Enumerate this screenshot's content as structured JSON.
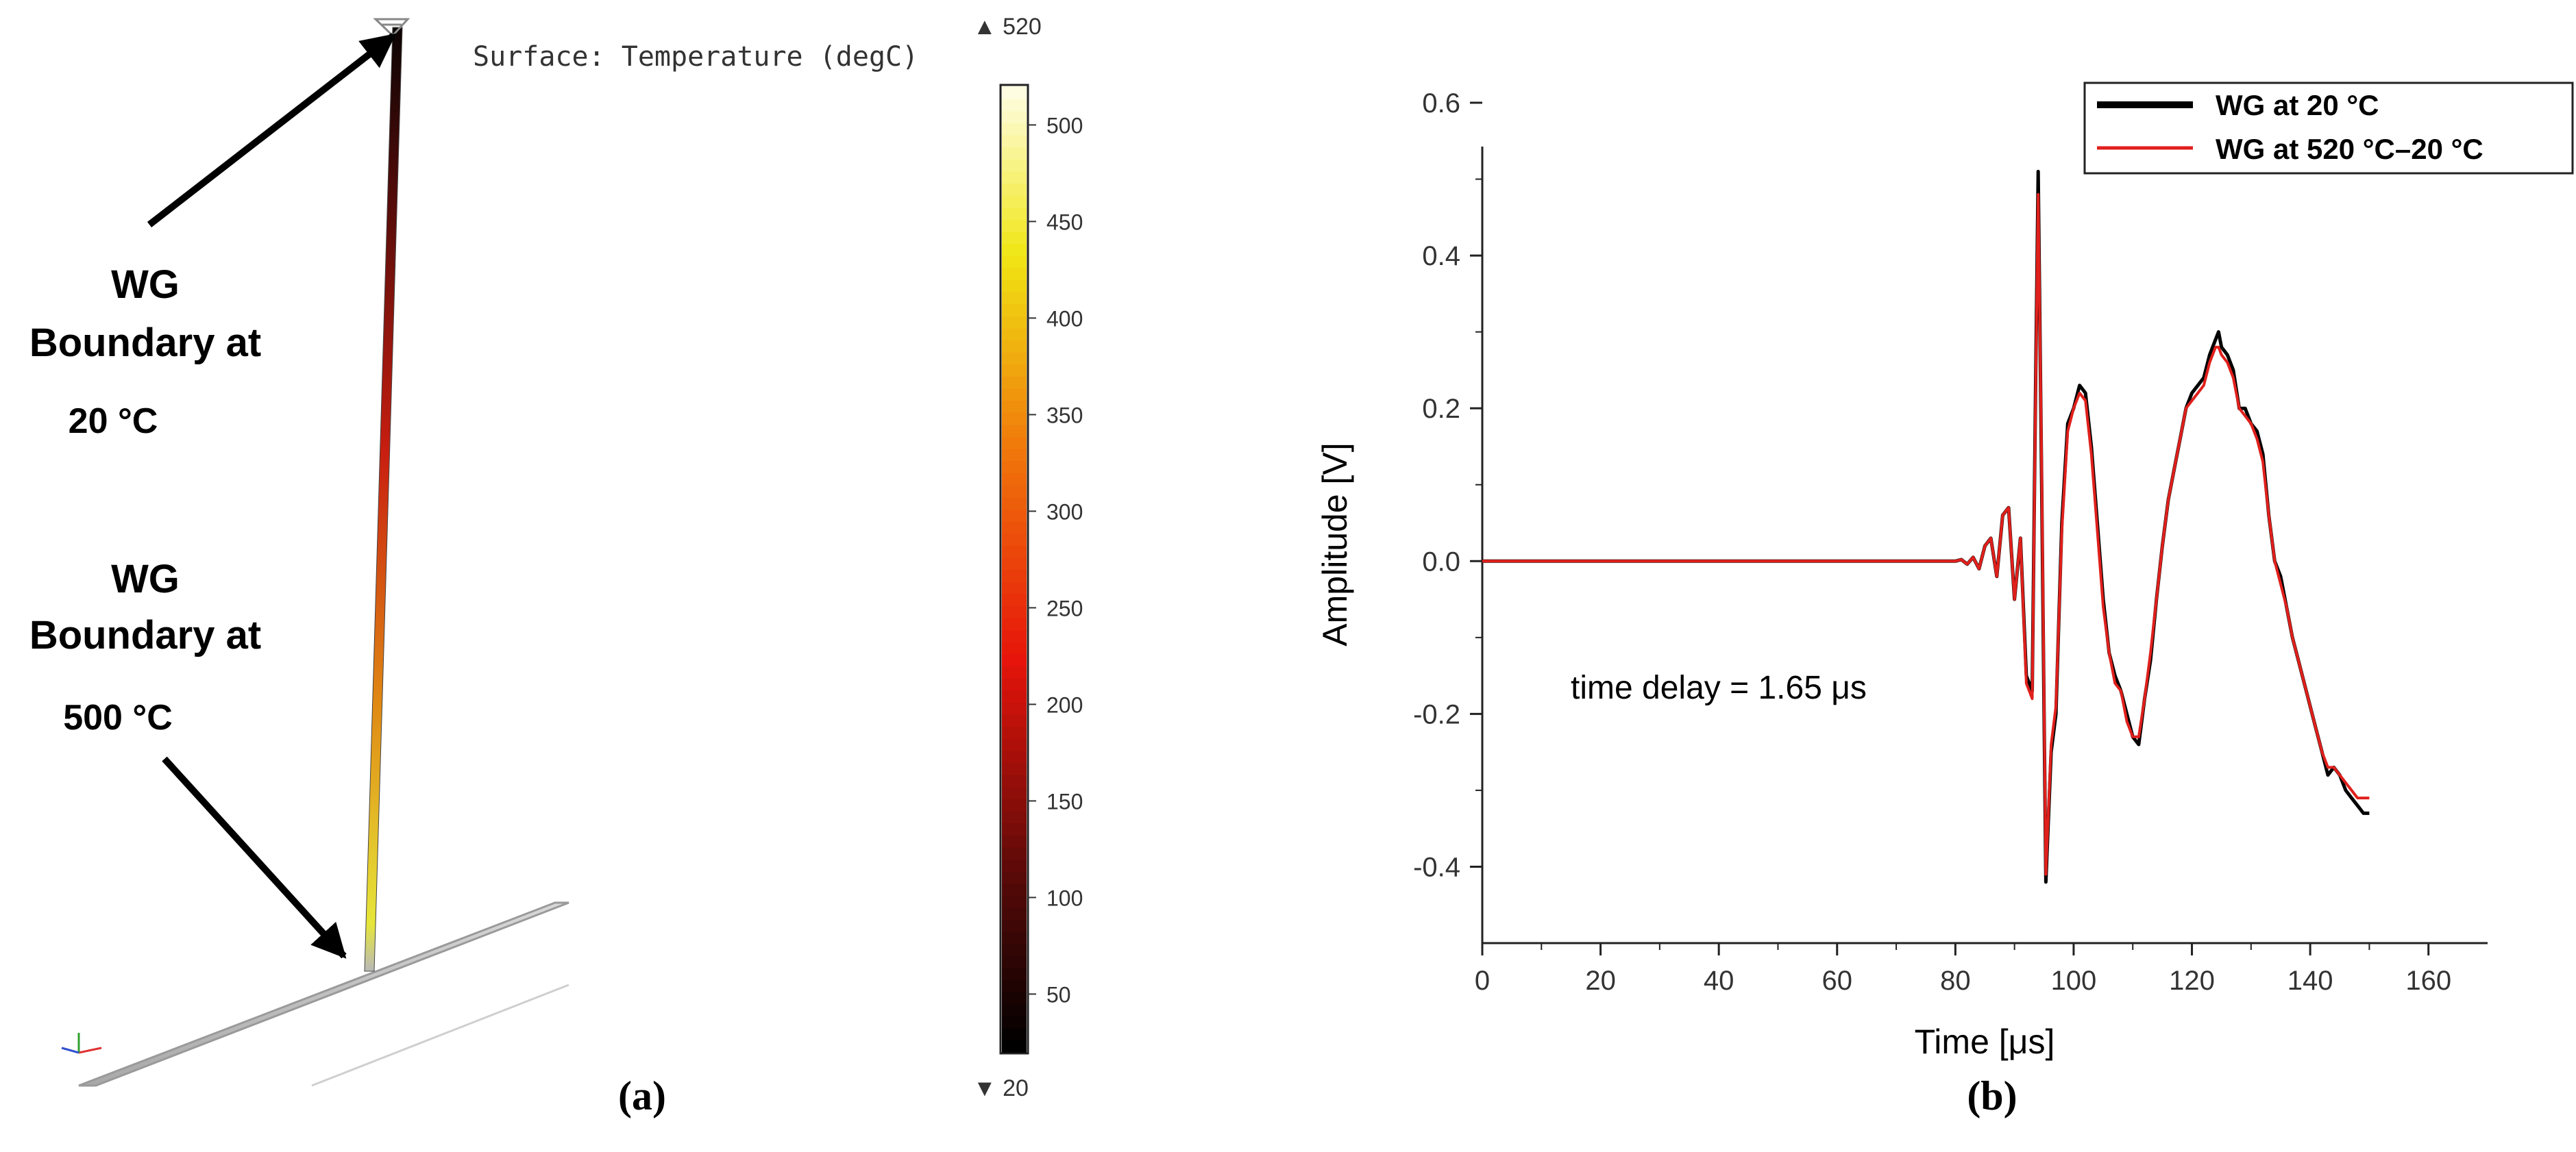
{
  "colors": {
    "line_20": "#000000",
    "line_520": "#e0201c",
    "arrow": "#000000",
    "plate": "#c4c4c4"
  },
  "panel_a": {
    "label": "(a)",
    "surface_title": "Surface: Temperature (degC)",
    "annotation_top": {
      "line1": "WG",
      "line2": "Boundary at",
      "line3": "20 °C"
    },
    "annotation_bottom": {
      "line1": "WG",
      "line2": "Boundary at",
      "line3": "500 °C"
    },
    "colorbar": {
      "max_label": "▲ 520",
      "min_label": "▼ 20",
      "min": 20,
      "max": 520,
      "ticks": [
        "500",
        "450",
        "400",
        "350",
        "300",
        "250",
        "200",
        "150",
        "100",
        "50"
      ],
      "colormap": "heat"
    }
  },
  "panel_b": {
    "label": "(b)",
    "annotation": "time delay  = 1.65 μs"
  },
  "chart_data": {
    "type": "line",
    "xlabel": "Time [μs]",
    "ylabel": "Amplitude  [V]",
    "xlim": [
      0,
      170
    ],
    "ylim": [
      -0.5,
      0.6
    ],
    "x_ticks": [
      "0",
      "20",
      "40",
      "60",
      "80",
      "100",
      "120",
      "140",
      "160"
    ],
    "y_ticks": [
      "0.6",
      "0.4",
      "0.2",
      "0.0",
      "-0.2",
      "-0.4"
    ],
    "legend_position": "top-right",
    "series": [
      {
        "name": "WG at 20 °C",
        "x": [
          0,
          79,
          80,
          81,
          82,
          83,
          84,
          85,
          86,
          87,
          88,
          89,
          90,
          91,
          92,
          93,
          93.6,
          94,
          94.6,
          95.3,
          96.2,
          97,
          98,
          99,
          100,
          101,
          102,
          103,
          104,
          105,
          106,
          107,
          108,
          109,
          110,
          111,
          112,
          113,
          114,
          115,
          116,
          117,
          118,
          119,
          120,
          121,
          122,
          123,
          124,
          124.5,
          125,
          126,
          127,
          128,
          129,
          130,
          131,
          132,
          133,
          134,
          135,
          136,
          137,
          138,
          139,
          140,
          141,
          142,
          143,
          144,
          145,
          146,
          147,
          148,
          149,
          150
        ],
        "y": [
          0.0,
          0.0,
          0.0,
          0.002,
          -0.004,
          0.005,
          -0.01,
          0.02,
          0.03,
          -0.02,
          0.06,
          0.07,
          -0.05,
          0.03,
          -0.15,
          -0.17,
          0.25,
          0.51,
          0.1,
          -0.42,
          -0.25,
          -0.2,
          0.05,
          0.18,
          0.2,
          0.23,
          0.22,
          0.15,
          0.05,
          -0.05,
          -0.12,
          -0.15,
          -0.17,
          -0.2,
          -0.23,
          -0.24,
          -0.18,
          -0.13,
          -0.05,
          0.02,
          0.08,
          0.12,
          0.16,
          0.2,
          0.22,
          0.23,
          0.24,
          0.27,
          0.29,
          0.3,
          0.28,
          0.27,
          0.25,
          0.2,
          0.2,
          0.18,
          0.17,
          0.14,
          0.06,
          0.0,
          -0.02,
          -0.06,
          -0.1,
          -0.13,
          -0.16,
          -0.19,
          -0.22,
          -0.25,
          -0.28,
          -0.27,
          -0.28,
          -0.3,
          -0.31,
          -0.32,
          -0.33,
          -0.33
        ]
      },
      {
        "name": "WG at 520 °C–20 °C",
        "x": [
          0,
          79,
          80,
          81,
          82,
          83,
          84,
          85,
          86,
          87,
          88,
          89,
          90,
          91,
          92,
          93,
          93.6,
          94,
          94.6,
          95.3,
          96.2,
          97,
          98,
          99,
          100,
          101,
          102,
          103,
          104,
          105,
          106,
          107,
          108,
          109,
          110,
          111,
          112,
          113,
          114,
          115,
          116,
          117,
          118,
          119,
          120,
          121,
          122,
          123,
          124,
          124.5,
          125,
          126,
          127,
          128,
          129,
          130,
          131,
          132,
          133,
          134,
          135,
          136,
          137,
          138,
          139,
          140,
          141,
          142,
          143,
          144,
          145,
          146,
          147,
          148,
          149,
          150
        ],
        "y": [
          0.0,
          0.0,
          0.0,
          0.002,
          -0.004,
          0.005,
          -0.01,
          0.02,
          0.03,
          -0.02,
          0.06,
          0.07,
          -0.05,
          0.03,
          -0.16,
          -0.18,
          0.24,
          0.48,
          0.12,
          -0.41,
          -0.24,
          -0.19,
          0.04,
          0.17,
          0.2,
          0.22,
          0.21,
          0.14,
          0.04,
          -0.06,
          -0.12,
          -0.16,
          -0.17,
          -0.21,
          -0.23,
          -0.23,
          -0.18,
          -0.12,
          -0.05,
          0.02,
          0.08,
          0.12,
          0.16,
          0.2,
          0.21,
          0.22,
          0.23,
          0.26,
          0.28,
          0.28,
          0.27,
          0.26,
          0.24,
          0.2,
          0.19,
          0.18,
          0.16,
          0.13,
          0.06,
          0.0,
          -0.03,
          -0.06,
          -0.1,
          -0.13,
          -0.16,
          -0.19,
          -0.22,
          -0.25,
          -0.27,
          -0.27,
          -0.28,
          -0.29,
          -0.3,
          -0.31,
          -0.31,
          -0.31
        ]
      }
    ]
  }
}
